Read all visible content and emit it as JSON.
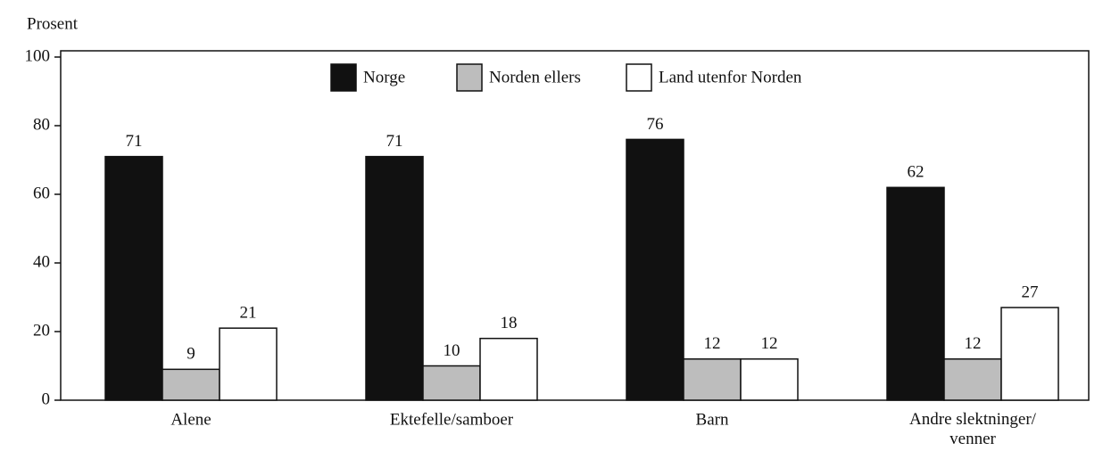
{
  "chart_data": {
    "type": "bar",
    "ylabel": "Prosent",
    "categories": [
      "Alene",
      "Ektefelle/samboer",
      "Barn",
      "Andre slektninger/\nvenner"
    ],
    "series": [
      {
        "name": "Norge",
        "color": "#111111",
        "values": [
          71,
          71,
          76,
          62
        ]
      },
      {
        "name": "Norden ellers",
        "color": "#bdbdbd",
        "values": [
          9,
          10,
          12,
          12
        ]
      },
      {
        "name": "Land utenfor Norden",
        "color": "#ffffff",
        "values": [
          21,
          18,
          12,
          27
        ]
      }
    ],
    "ylim": [
      0,
      100
    ],
    "yticks": [
      0,
      20,
      40,
      60,
      80,
      100
    ],
    "legend": "top"
  }
}
